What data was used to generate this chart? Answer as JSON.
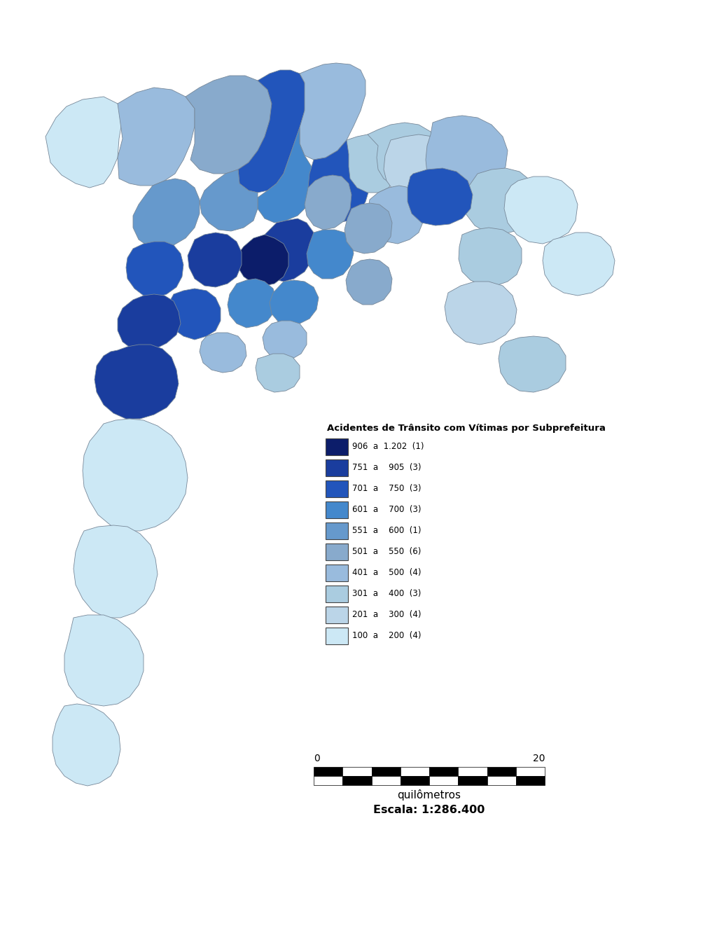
{
  "title": "Acidentes de Trânsito com Vítimas por Subprefeitura",
  "scalebar_label": "quilômetros",
  "scale_text": "Escala: 1:286.400",
  "background_color": "#ffffff",
  "colors": {
    "c1": "#0d1f6b",
    "c2": "#1a3f9e",
    "c3": "#2255bb",
    "c4": "#4488cc",
    "c5": "#6699cc",
    "c6": "#88aacc",
    "c7": "#99bbdd",
    "c8": "#aaccdd",
    "c9": "#bbd5e8",
    "c10": "#cce8f5"
  },
  "legend_entries": [
    {
      "label": "906  a  1.202  (1)",
      "color_key": "c1"
    },
    {
      "label": "751  a    905  (3)",
      "color_key": "c2"
    },
    {
      "label": "701  a    750  (3)",
      "color_key": "c3"
    },
    {
      "label": "601  a    700  (3)",
      "color_key": "c4"
    },
    {
      "label": "551  a    600  (1)",
      "color_key": "c5"
    },
    {
      "label": "501  a    550  (6)",
      "color_key": "c6"
    },
    {
      "label": "401  a    500  (4)",
      "color_key": "c7"
    },
    {
      "label": "301  a    400  (3)",
      "color_key": "c8"
    },
    {
      "label": "201  a    300  (4)",
      "color_key": "c9"
    },
    {
      "label": "100  a    200  (4)",
      "color_key": "c10"
    }
  ]
}
